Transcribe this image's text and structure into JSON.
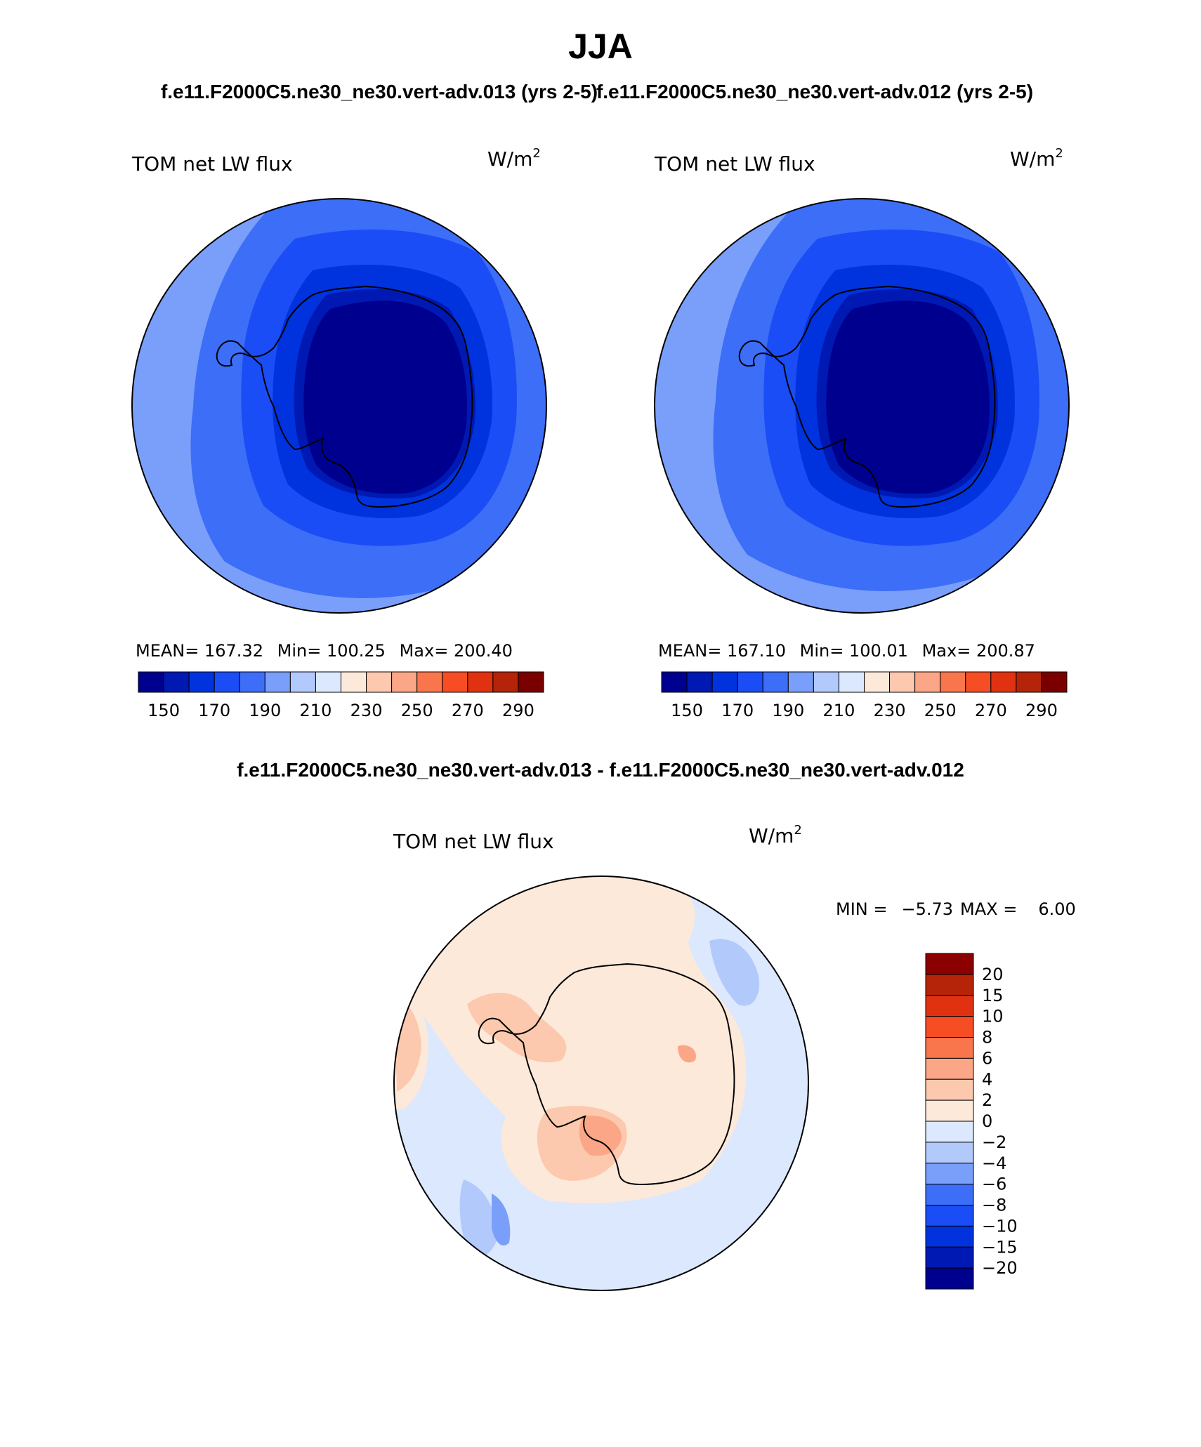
{
  "figure": {
    "title": "JJA",
    "top_subtitles": [
      "f.e11.F2000C5.ne30_ne30.vert-adv.013 (yrs 2-5)",
      "f.e11.F2000C5.ne30_ne30.vert-adv.012 (yrs 2-5)"
    ],
    "diff_subtitle": "f.e11.F2000C5.ne30_ne30.vert-adv.013 - f.e11.F2000C5.ne30_ne30.vert-adv.012"
  },
  "colors": {
    "abs_scale": [
      "#00008f",
      "#0019b3",
      "#0033dd",
      "#1a4df5",
      "#3d6ef7",
      "#7a9ffa",
      "#b2c9fb",
      "#dbe8fd",
      "#fde9da",
      "#fcc9ae",
      "#fba686",
      "#f9764d",
      "#f74d25",
      "#e03210",
      "#b52308",
      "#7a0000"
    ],
    "diff_scale": [
      "#00008f",
      "#0019b3",
      "#0033dd",
      "#1a4df5",
      "#3d6ef7",
      "#7a9ffa",
      "#b2c9fb",
      "#dbe8fd",
      "#fde9da",
      "#fcc9ae",
      "#fba686",
      "#f9764d",
      "#f74d25",
      "#e03210",
      "#b52308",
      "#8b0000"
    ],
    "land_outline": "#000000"
  },
  "chart_data": [
    {
      "type": "heatmap",
      "projection": "south polar stereographic",
      "title": "TOM net LW flux",
      "units_base": "W/m",
      "units_exp": "2",
      "stats": {
        "mean_label": "MEAN=",
        "mean": "167.32",
        "min_label": "Min=",
        "min": "100.25",
        "max_label": "Max=",
        "max": "200.40"
      },
      "colorbar_ticks": [
        "150",
        "170",
        "190",
        "210",
        "230",
        "250",
        "270",
        "290"
      ],
      "field_levels": [
        {
          "level": 0,
          "value": 195
        },
        {
          "level": 1,
          "value": 185
        },
        {
          "level": 2,
          "value": 175
        },
        {
          "level": 3,
          "value": 160
        },
        {
          "level": 4,
          "value": 140
        },
        {
          "level": 5,
          "value": 110
        }
      ]
    },
    {
      "type": "heatmap",
      "projection": "south polar stereographic",
      "title": "TOM net LW flux",
      "units_base": "W/m",
      "units_exp": "2",
      "stats": {
        "mean_label": "MEAN=",
        "mean": "167.10",
        "min_label": "Min=",
        "min": "100.01",
        "max_label": "Max=",
        "max": "200.87"
      },
      "colorbar_ticks": [
        "150",
        "170",
        "190",
        "210",
        "230",
        "250",
        "270",
        "290"
      ],
      "field_levels": [
        {
          "level": 0,
          "value": 195
        },
        {
          "level": 1,
          "value": 185
        },
        {
          "level": 2,
          "value": 175
        },
        {
          "level": 3,
          "value": 160
        },
        {
          "level": 4,
          "value": 140
        },
        {
          "level": 5,
          "value": 110
        }
      ]
    },
    {
      "type": "heatmap",
      "projection": "south polar stereographic",
      "title": "TOM net LW flux",
      "units_base": "W/m",
      "units_exp": "2",
      "stats": {
        "min_label": "MIN =",
        "min": "−5.73",
        "max_label": "MAX =",
        "max": "6.00"
      },
      "colorbar_ticks": [
        "20",
        "15",
        "10",
        "8",
        "6",
        "4",
        "2",
        "0",
        "−2",
        "−4",
        "−6",
        "−8",
        "−10",
        "−15",
        "−20"
      ]
    }
  ]
}
